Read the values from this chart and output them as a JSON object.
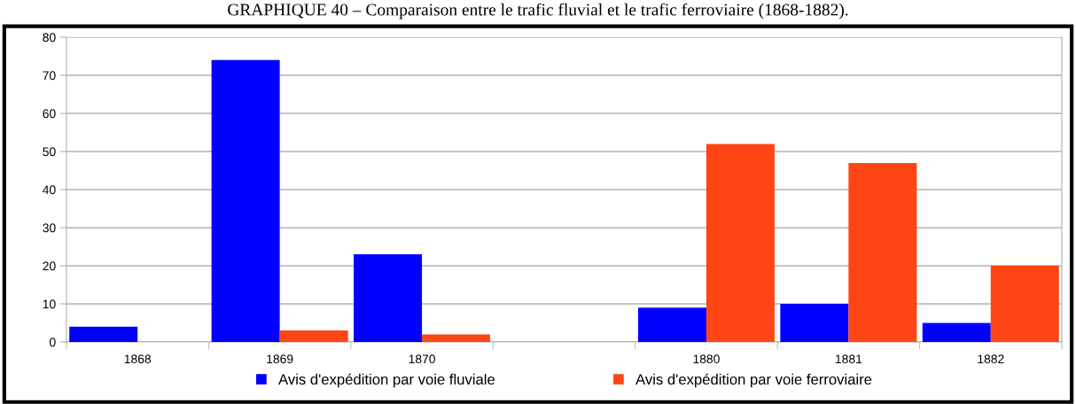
{
  "chart_data": {
    "type": "bar",
    "title": "GRAPHIQUE 40 – Comparaison entre le trafic fluvial et le trafic ferroviaire (1868-1882).",
    "categories": [
      "1868",
      "1869",
      "1870",
      null,
      "1880",
      "1881",
      "1882"
    ],
    "series": [
      {
        "name": "Avis d'expédition par voie fluviale",
        "color": "#0000ff",
        "values": [
          4,
          74,
          23,
          null,
          9,
          10,
          5
        ]
      },
      {
        "name": "Avis d'expédition par voie ferroviaire",
        "color": "#ff4513",
        "values": [
          0,
          3,
          2,
          null,
          52,
          47,
          20
        ]
      }
    ],
    "ylim": [
      0,
      80
    ],
    "yticks": [
      0,
      10,
      20,
      30,
      40,
      50,
      60,
      70,
      80
    ],
    "grid": "y",
    "legend": "bottom"
  }
}
